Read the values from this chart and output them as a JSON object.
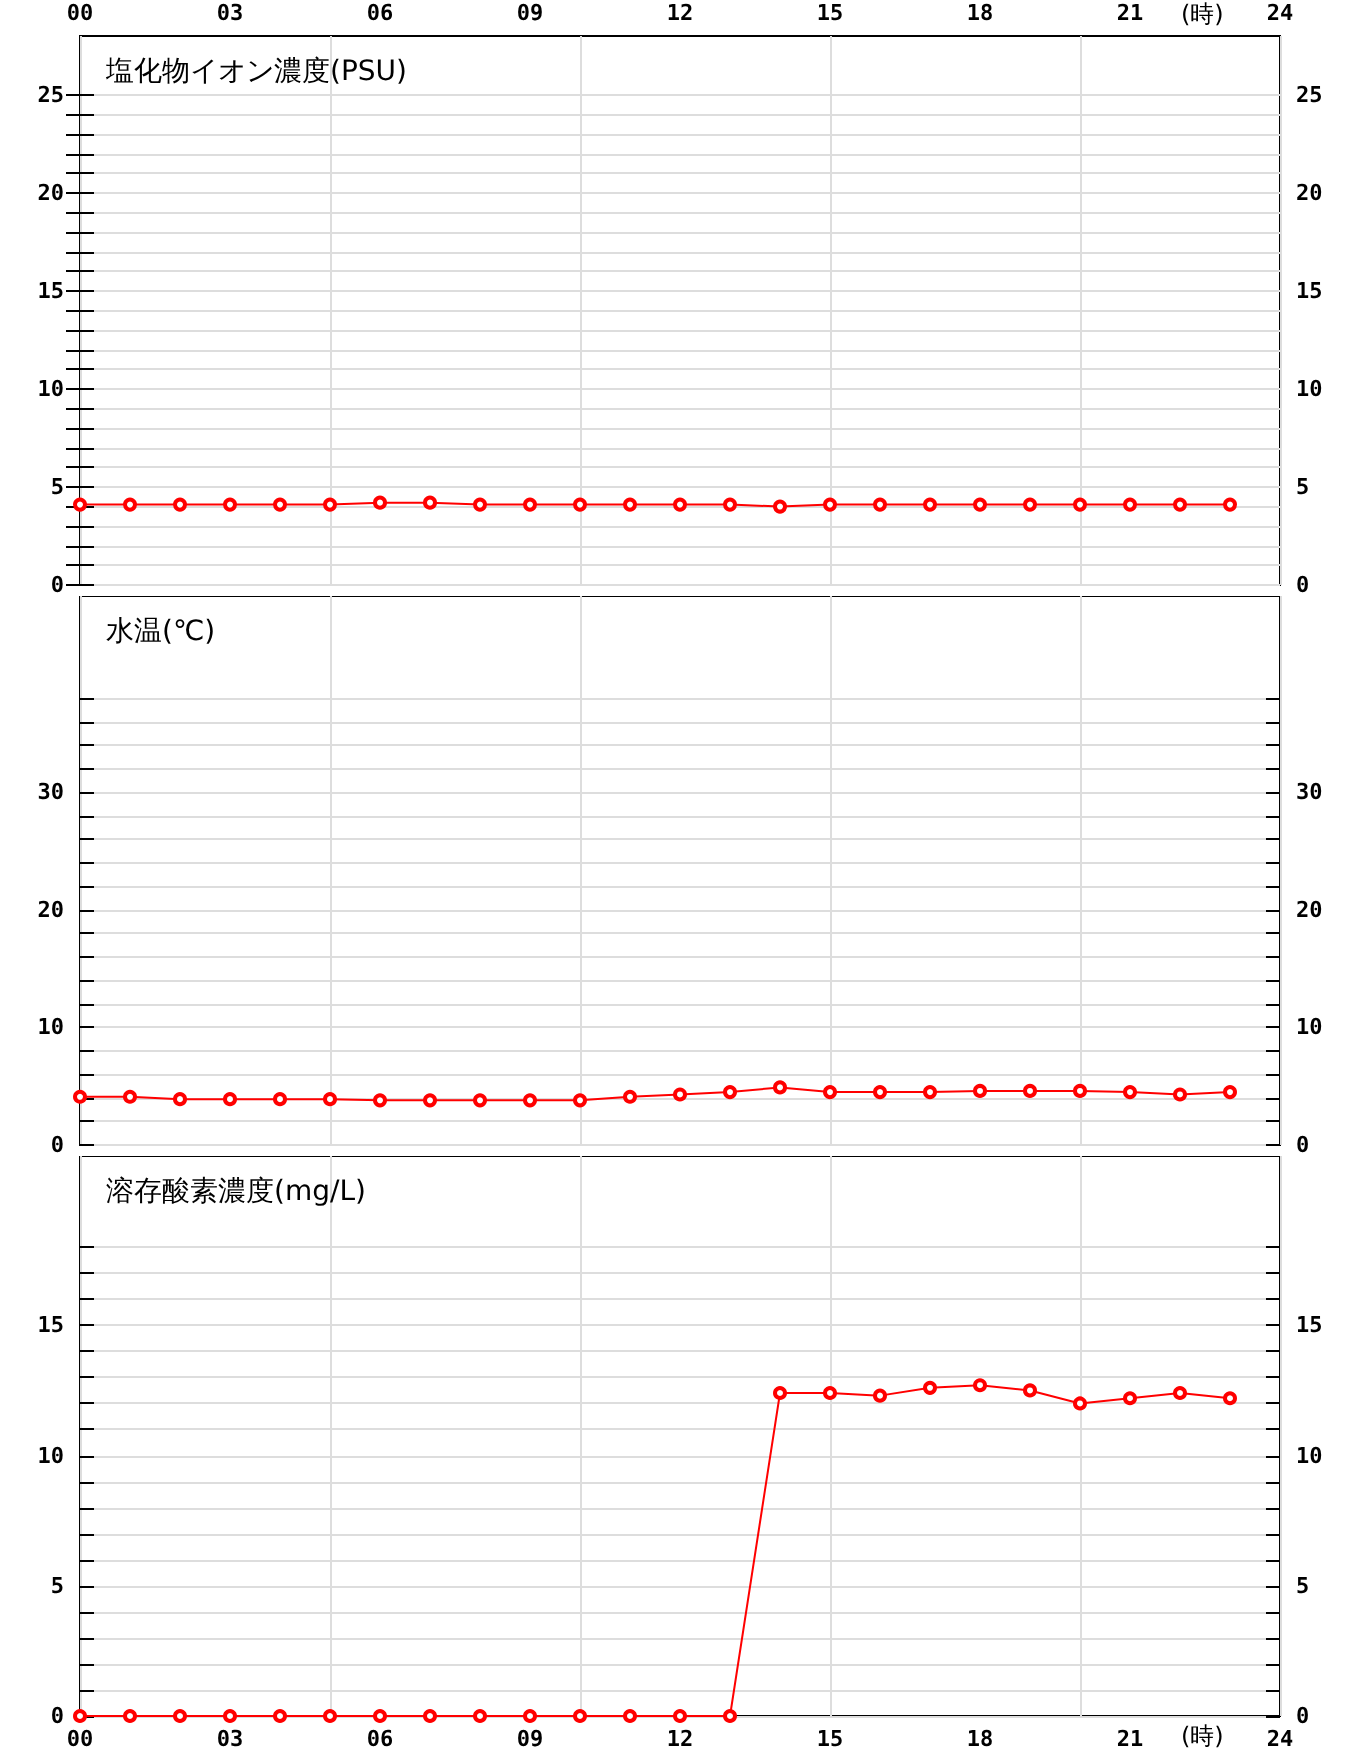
{
  "chart_data": [
    {
      "type": "line",
      "title": "塩化物イオン濃度(PSU)",
      "x": [
        0,
        1,
        2,
        3,
        4,
        5,
        6,
        7,
        8,
        9,
        10,
        11,
        12,
        13,
        14,
        15,
        16,
        17,
        18,
        19,
        20,
        21,
        22,
        23
      ],
      "series": [
        {
          "color": "#ff0000",
          "values": [
            4.1,
            4.1,
            4.1,
            4.1,
            4.1,
            4.1,
            4.2,
            4.2,
            4.1,
            4.1,
            4.1,
            4.1,
            4.1,
            4.1,
            4.0,
            4.1,
            4.1,
            4.1,
            4.1,
            4.1,
            4.1,
            4.1,
            4.1,
            4.1
          ]
        }
      ],
      "xlim": [
        0,
        24
      ],
      "xticks": [
        {
          "value": 0,
          "label": null
        },
        {
          "value": 3,
          "label": null
        },
        {
          "value": 6,
          "label": null
        },
        {
          "value": 9,
          "label": null
        },
        {
          "value": 12,
          "label": null
        },
        {
          "value": 15,
          "label": null
        },
        {
          "value": 18,
          "label": null
        },
        {
          "value": 21,
          "label": null
        },
        {
          "value": 24,
          "label": null
        }
      ],
      "x2lim": [
        0,
        24
      ],
      "x2ticks": [
        {
          "value": 0,
          "label": "00"
        },
        {
          "value": 3,
          "label": "03"
        },
        {
          "value": 6,
          "label": "06"
        },
        {
          "value": 9,
          "label": "09"
        },
        12,
        15,
        18,
        21,
        24
      ],
      "x2label": "(時)",
      "ylim": [
        0,
        28
      ],
      "yticks": [
        0,
        {
          "value": 1,
          "label": null
        },
        {
          "value": 2,
          "label": null
        },
        {
          "value": 3,
          "label": null
        },
        {
          "value": 4,
          "label": null
        },
        5,
        {
          "value": 6,
          "label": null
        },
        {
          "value": 7,
          "label": null
        },
        {
          "value": 8,
          "label": null
        },
        {
          "value": 9,
          "label": null
        },
        10,
        {
          "value": 11,
          "label": null
        },
        {
          "value": 12,
          "label": null
        },
        {
          "value": 13,
          "label": null
        },
        {
          "value": 14,
          "label": null
        },
        15,
        {
          "value": 16,
          "label": null
        },
        {
          "value": 17,
          "label": null
        },
        {
          "value": 18,
          "label": null
        },
        {
          "value": 19,
          "label": null
        },
        20,
        {
          "value": 21,
          "label": null
        },
        {
          "value": 22,
          "label": null
        },
        {
          "value": 23,
          "label": null
        },
        {
          "value": 24,
          "label": null
        },
        25
      ],
      "y2lim": [
        0,
        28
      ],
      "y2ticks": [
        0,
        {
          "value": 1,
          "label": null
        },
        {
          "value": 2,
          "label": null
        },
        {
          "value": 3,
          "label": null
        },
        {
          "value": 4,
          "label": null
        },
        5,
        {
          "value": 6,
          "label": null
        },
        {
          "value": 7,
          "label": null
        },
        {
          "value": 8,
          "label": null
        },
        {
          "value": 9,
          "label": null
        },
        10,
        {
          "value": 11,
          "label": null
        },
        {
          "value": 12,
          "label": null
        },
        {
          "value": 13,
          "label": null
        },
        {
          "value": 14,
          "label": null
        },
        15,
        {
          "value": 16,
          "label": null
        },
        {
          "value": 17,
          "label": null
        },
        {
          "value": 18,
          "label": null
        },
        {
          "value": 19,
          "label": null
        },
        20,
        {
          "value": 21,
          "label": null
        },
        {
          "value": 22,
          "label": null
        },
        {
          "value": 23,
          "label": null
        },
        {
          "value": 24,
          "label": null
        },
        25
      ],
      "tick_labels": "y",
      "grid": true,
      "marker": "circle",
      "line_style": "solid"
    },
    {
      "type": "line",
      "title": "水温(℃)",
      "x": [
        0,
        1,
        2,
        3,
        4,
        5,
        6,
        7,
        8,
        9,
        10,
        11,
        12,
        13,
        14,
        15,
        16,
        17,
        18,
        19,
        20,
        21,
        22,
        23
      ],
      "series": [
        {
          "color": "#ff0000",
          "values": [
            4.1,
            4.1,
            3.9,
            3.9,
            3.9,
            3.9,
            3.8,
            3.8,
            3.8,
            3.8,
            3.8,
            4.1,
            4.3,
            4.5,
            4.9,
            4.5,
            4.5,
            4.5,
            4.6,
            4.6,
            4.6,
            4.5,
            4.3,
            4.5
          ]
        }
      ],
      "xlim": [
        0,
        24
      ],
      "xticks": [
        {
          "value": 0,
          "label": null
        },
        {
          "value": 3,
          "label": null
        },
        {
          "value": 6,
          "label": null
        },
        {
          "value": 9,
          "label": null
        },
        {
          "value": 12,
          "label": null
        },
        {
          "value": 15,
          "label": null
        },
        {
          "value": 18,
          "label": null
        },
        {
          "value": 21,
          "label": null
        },
        {
          "value": 24,
          "label": null
        }
      ],
      "ylim": [
        0,
        46.7
      ],
      "yticks": [
        0,
        {
          "value": 2,
          "label": null
        },
        {
          "value": 4,
          "label": null
        },
        {
          "value": 6,
          "label": null
        },
        {
          "value": 8,
          "label": null
        },
        10,
        {
          "value": 12,
          "label": null
        },
        {
          "value": 14,
          "label": null
        },
        {
          "value": 16,
          "label": null
        },
        {
          "value": 18,
          "label": null
        },
        20,
        {
          "value": 22,
          "label": null
        },
        {
          "value": 24,
          "label": null
        },
        {
          "value": 26,
          "label": null
        },
        {
          "value": 28,
          "label": null
        },
        30,
        {
          "value": 32,
          "label": null
        },
        {
          "value": 34,
          "label": null
        },
        {
          "value": 36,
          "label": null
        },
        {
          "value": 38,
          "label": null
        }
      ],
      "y2lim": [
        0,
        46.7
      ],
      "y2ticks": [
        0,
        {
          "value": 2,
          "label": null
        },
        {
          "value": 4,
          "label": null
        },
        {
          "value": 6,
          "label": null
        },
        {
          "value": 8,
          "label": null
        },
        10,
        {
          "value": 12,
          "label": null
        },
        {
          "value": 14,
          "label": null
        },
        {
          "value": 16,
          "label": null
        },
        {
          "value": 18,
          "label": null
        },
        20,
        {
          "value": 22,
          "label": null
        },
        {
          "value": 24,
          "label": null
        },
        {
          "value": 26,
          "label": null
        },
        {
          "value": 28,
          "label": null
        },
        30,
        {
          "value": 32,
          "label": null
        },
        {
          "value": 34,
          "label": null
        },
        {
          "value": 36,
          "label": null
        },
        {
          "value": 38,
          "label": null
        }
      ],
      "tick_labels": "y",
      "grid": true,
      "marker": "circle",
      "line_style": "solid"
    },
    {
      "type": "line",
      "title": "溶存酸素濃度(mg/L)",
      "x": [
        0,
        1,
        2,
        3,
        4,
        5,
        6,
        7,
        8,
        9,
        10,
        11,
        12,
        13,
        14,
        15,
        16,
        17,
        18,
        19,
        20,
        21,
        22,
        23
      ],
      "series": [
        {
          "color": "#ff0000",
          "values": [
            0,
            0,
            0,
            0,
            0,
            0,
            0,
            0,
            0,
            0,
            0,
            0,
            0,
            0,
            12.4,
            12.4,
            12.3,
            12.6,
            12.7,
            12.5,
            12.0,
            12.2,
            12.4,
            12.2
          ]
        }
      ],
      "xlim": [
        0,
        24
      ],
      "xticks": [
        {
          "value": 0,
          "label": "00"
        },
        {
          "value": 3,
          "label": "03"
        },
        {
          "value": 6,
          "label": "06"
        },
        {
          "value": 9,
          "label": "09"
        },
        12,
        15,
        18,
        21,
        24
      ],
      "xlabel": "(時)",
      "ylim": [
        0,
        21.5
      ],
      "yticks": [
        0,
        {
          "value": 1,
          "label": null
        },
        {
          "value": 2,
          "label": null
        },
        {
          "value": 3,
          "label": null
        },
        {
          "value": 4,
          "label": null
        },
        5,
        {
          "value": 6,
          "label": null
        },
        {
          "value": 7,
          "label": null
        },
        {
          "value": 8,
          "label": null
        },
        {
          "value": 9,
          "label": null
        },
        10,
        {
          "value": 11,
          "label": null
        },
        {
          "value": 12,
          "label": null
        },
        {
          "value": 13,
          "label": null
        },
        {
          "value": 14,
          "label": null
        },
        15,
        {
          "value": 16,
          "label": null
        },
        {
          "value": 17,
          "label": null
        },
        {
          "value": 18,
          "label": null
        }
      ],
      "y2lim": [
        0,
        21.5
      ],
      "y2ticks": [
        0,
        {
          "value": 1,
          "label": null
        },
        {
          "value": 2,
          "label": null
        },
        {
          "value": 3,
          "label": null
        },
        {
          "value": 4,
          "label": null
        },
        5,
        {
          "value": 6,
          "label": null
        },
        {
          "value": 7,
          "label": null
        },
        {
          "value": 8,
          "label": null
        },
        {
          "value": 9,
          "label": null
        },
        10,
        {
          "value": 11,
          "label": null
        },
        {
          "value": 12,
          "label": null
        },
        {
          "value": 13,
          "label": null
        },
        {
          "value": 14,
          "label": null
        },
        15,
        {
          "value": 16,
          "label": null
        },
        {
          "value": 17,
          "label": null
        },
        {
          "value": 18,
          "label": null
        }
      ],
      "grid": true,
      "marker": "circle",
      "line_style": "solid"
    }
  ]
}
